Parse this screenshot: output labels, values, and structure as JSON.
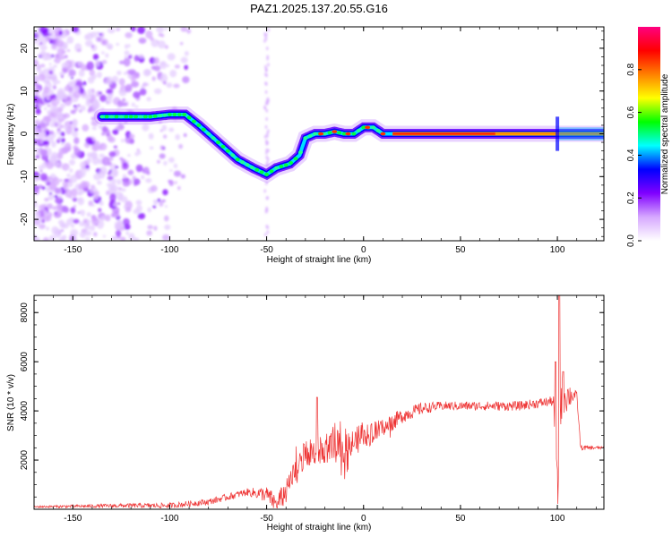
{
  "title": "PAZ1.2025.137.20.55.G16",
  "chart_data": [
    {
      "type": "heatmap",
      "xlabel": "Height of straight line (km)",
      "ylabel": "Frequency (Hz)",
      "xlim": [
        -170,
        124
      ],
      "ylim": [
        -25,
        25
      ],
      "xticks": [
        -150,
        -100,
        -50,
        0,
        50,
        100
      ],
      "yticks": [
        -20,
        -10,
        0,
        10,
        20
      ],
      "colorbar": {
        "label": "Normalized spectral amplitude",
        "range": [
          0,
          1
        ],
        "ticks": [
          0.0,
          0.2,
          0.4,
          0.6,
          0.8
        ],
        "colors": [
          "#ffffff",
          "#d6a8ff",
          "#8000ff",
          "#0000ff",
          "#00ffff",
          "#00ff00",
          "#ffff00",
          "#ff8000",
          "#ff0000",
          "#ff0080"
        ]
      },
      "ridge": {
        "x": [
          -135,
          -130,
          -120,
          -110,
          -100,
          -92,
          -85,
          -75,
          -65,
          -57,
          -50,
          -45,
          -38,
          -33,
          -30,
          -25,
          -20,
          -15,
          -10,
          -5,
          0,
          5,
          10,
          15,
          50,
          100,
          124
        ],
        "y": [
          4,
          4,
          4,
          4,
          4.5,
          4.5,
          2,
          -2,
          -6,
          -8,
          -9.5,
          -8,
          -7,
          -5,
          -1,
          0,
          0,
          0.5,
          0,
          0,
          1.5,
          1.5,
          0,
          0,
          0,
          0,
          0
        ]
      }
    },
    {
      "type": "line",
      "xlabel": "Height of straight line (km)",
      "ylabel": "SNR (10 * v/v)",
      "xlim": [
        -170,
        124
      ],
      "ylim": [
        0,
        8700
      ],
      "xticks": [
        -150,
        -100,
        -50,
        0,
        50,
        100
      ],
      "yticks": [
        2000,
        4000,
        6000,
        8000
      ],
      "color": "#ee3333",
      "envelope": {
        "x": [
          -170,
          -120,
          -100,
          -80,
          -60,
          -50,
          -45,
          -40,
          -35,
          -30,
          -20,
          -10,
          0,
          10,
          20,
          30,
          40,
          60,
          80,
          98,
          100,
          102,
          110,
          112,
          124
        ],
        "y": [
          100,
          150,
          150,
          300,
          700,
          600,
          200,
          700,
          1500,
          2200,
          2500,
          2600,
          2900,
          3300,
          3800,
          4100,
          4200,
          4200,
          4200,
          4400,
          500,
          4600,
          4650,
          2500,
          2500
        ]
      },
      "noise": {
        "x": [
          -170,
          -60,
          -40,
          -10,
          0,
          20,
          40,
          98,
          100,
          110,
          124
        ],
        "amplitude": [
          40,
          150,
          500,
          700,
          500,
          300,
          180,
          200,
          1200,
          120,
          50
        ]
      },
      "spikes": [
        {
          "x": -24,
          "y": 4550
        },
        {
          "x": 99,
          "y": 6000
        },
        {
          "x": 101,
          "y": 8700
        },
        {
          "x": 103,
          "y": 5600
        }
      ]
    }
  ]
}
